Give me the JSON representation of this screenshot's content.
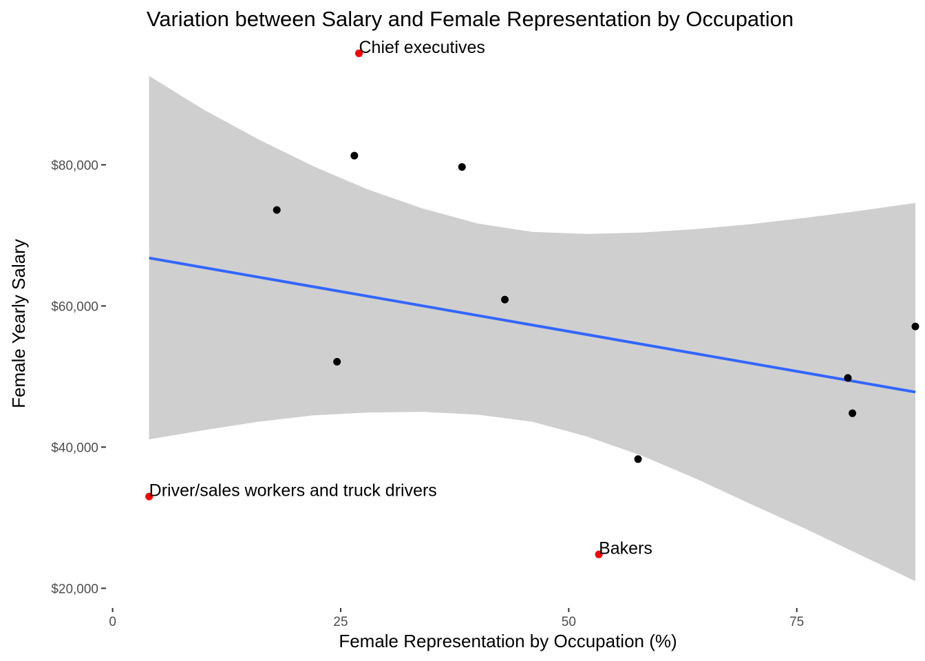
{
  "chart_data": {
    "type": "scatter",
    "title": "Variation between Salary and Female Representation by Occupation",
    "xlabel": "Female Representation by Occupation  (%)",
    "ylabel": "Female Yearly Salary",
    "xlim": [
      -0.5,
      88
    ],
    "ylim": [
      17500,
      97500
    ],
    "x_ticks": [
      0,
      25,
      50,
      75
    ],
    "x_tick_labels": [
      "0",
      "25",
      "50",
      "75"
    ],
    "y_ticks": [
      20000,
      40000,
      60000,
      80000
    ],
    "y_tick_labels": [
      "$20,000",
      "$40,000",
      "$60,000",
      "$80,000"
    ],
    "grid": false,
    "colors": {
      "point": "#000000",
      "highlight": "#ff0000",
      "trend": "#3366ff",
      "ribbon": "#cfcfcf"
    },
    "points": [
      {
        "x": 18.0,
        "y": 73600,
        "label": "",
        "highlight": false
      },
      {
        "x": 24.6,
        "y": 52100,
        "label": "",
        "highlight": false
      },
      {
        "x": 26.5,
        "y": 81300,
        "label": "",
        "highlight": false
      },
      {
        "x": 38.3,
        "y": 79700,
        "label": "",
        "highlight": false
      },
      {
        "x": 43.0,
        "y": 60900,
        "label": "",
        "highlight": false
      },
      {
        "x": 57.6,
        "y": 38300,
        "label": "",
        "highlight": false
      },
      {
        "x": 80.6,
        "y": 49800,
        "label": "",
        "highlight": false
      },
      {
        "x": 81.1,
        "y": 44800,
        "label": "",
        "highlight": false
      },
      {
        "x": 88.0,
        "y": 57100,
        "label": "",
        "highlight": false
      },
      {
        "x": 27.0,
        "y": 95800,
        "label": "Chief executives",
        "highlight": true
      },
      {
        "x": 4.0,
        "y": 33000,
        "label": "Driver/sales workers and truck drivers",
        "highlight": true
      },
      {
        "x": 53.3,
        "y": 24800,
        "label": "Bakers",
        "highlight": true
      }
    ],
    "trend": {
      "x": [
        4.0,
        88.0
      ],
      "y": [
        66800,
        47800
      ]
    },
    "confidence_band": {
      "x": [
        4,
        10,
        16,
        22,
        28,
        34,
        40,
        46,
        52,
        58,
        64,
        70,
        76,
        82,
        88
      ],
      "upper": [
        92600,
        87800,
        83600,
        79800,
        76500,
        73800,
        71700,
        70500,
        70200,
        70400,
        70900,
        71600,
        72500,
        73500,
        74600
      ],
      "lower": [
        41100,
        42400,
        43600,
        44500,
        44900,
        45000,
        44600,
        43600,
        41500,
        38800,
        35500,
        31900,
        28400,
        24700,
        21000
      ]
    }
  }
}
